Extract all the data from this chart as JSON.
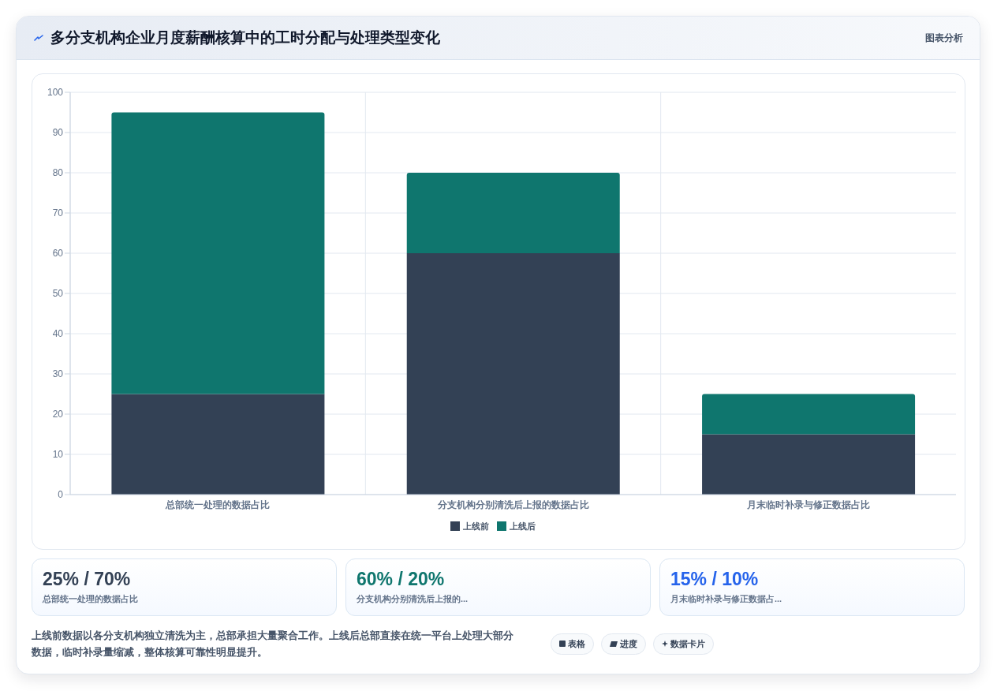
{
  "chart_data": {
    "type": "bar",
    "title": "多分支机构企业月度薪酬核算中的工时分配与处理类型变化",
    "categories": [
      "总部统一处理的数据占比",
      "分支机构分别清洗后上报的数据占比",
      "月末临时补录与修正数据占比"
    ],
    "series": [
      {
        "name": "上线前",
        "color": "#334155",
        "values": [
          25,
          60,
          15
        ]
      },
      {
        "name": "上线后",
        "color": "#0f766e",
        "values": [
          70,
          20,
          10
        ]
      }
    ],
    "stacked": true,
    "ylim": [
      0,
      100
    ],
    "yticks": [
      0,
      10,
      20,
      30,
      40,
      50,
      60,
      70,
      80,
      90,
      100
    ],
    "grid": true,
    "legend": "bottom",
    "annotations": [
      "图表分析",
      "25% / 70%",
      "总部统一处理的数据占比",
      "60% / 20%",
      "分支机构分别清洗后上报的...",
      "15% / 10%",
      "月末临时补录与修正数据占...",
      "上线前数据以各分支机构独立清洗为主，总部承担大量聚合工作。上线后总部直接在统一平台上处理大部分数据，临时补录量缩减，整体核算可靠性明显提升。",
      "表格",
      "进度",
      "数据卡片"
    ]
  }
}
